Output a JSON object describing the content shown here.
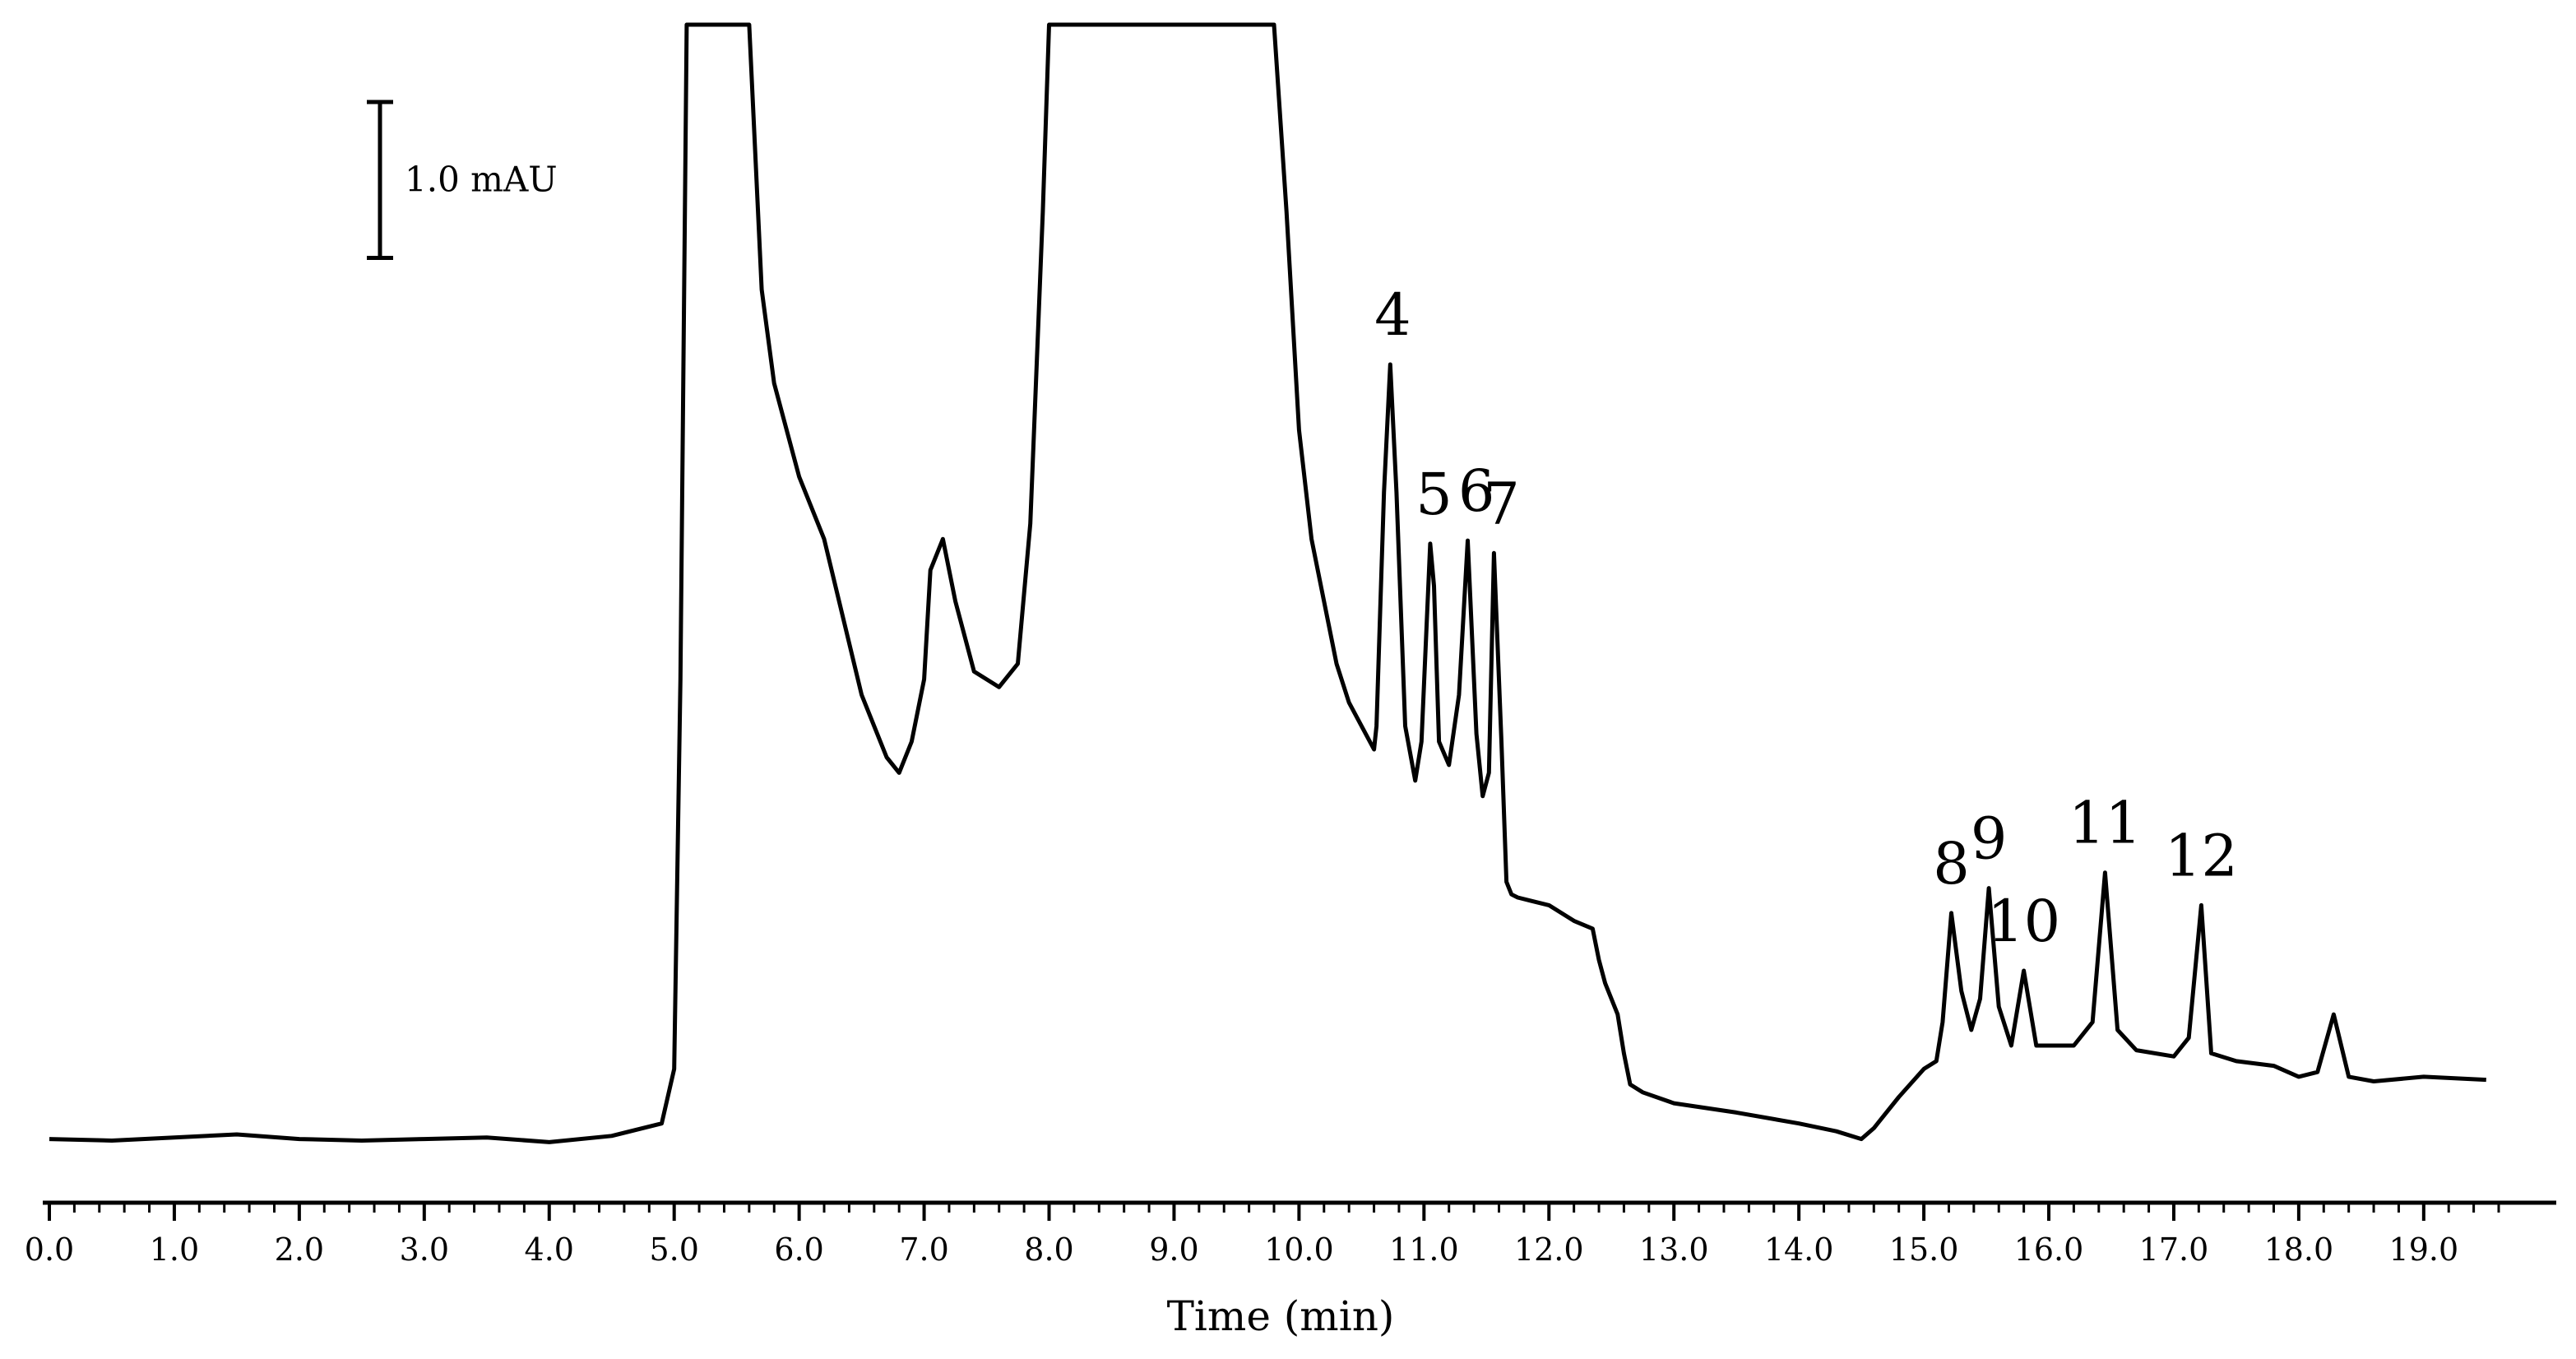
{
  "chart_data": {
    "type": "line",
    "title": "",
    "xlabel": "Time (min)",
    "ylabel": "",
    "x_ticks": [
      "0.0",
      "1.0",
      "2.0",
      "3.0",
      "4.0",
      "5.0",
      "6.0",
      "7.0",
      "8.0",
      "9.0",
      "10.0",
      "11.0",
      "12.0",
      "13.0",
      "14.0",
      "15.0",
      "16.0",
      "17.0",
      "18.0",
      "19.0"
    ],
    "xlim": [
      0,
      19.6
    ],
    "ylim": [
      -0.2,
      7.2
    ],
    "y_unit": "mAU",
    "scale_bar": {
      "label": "1.0 mAU",
      "value": 1.0
    },
    "grid": false,
    "legend": "none",
    "line_color": "#000000",
    "series": [
      {
        "x": [
          0,
          0.5,
          1.0,
          1.5,
          2.0,
          2.5,
          3.0,
          3.5,
          4.0,
          4.5,
          4.9,
          5.0,
          5.05,
          5.1,
          5.2,
          5.6,
          5.7,
          5.8,
          6.0,
          6.2,
          6.5,
          6.7,
          6.8,
          6.9,
          7.0,
          7.05,
          7.15,
          7.25,
          7.4,
          7.6,
          7.75,
          7.85,
          7.95,
          8.0,
          9.8,
          9.9,
          10.0,
          10.1,
          10.2,
          10.3,
          10.4,
          10.6,
          10.62,
          10.68,
          10.73,
          10.78,
          10.85,
          10.93,
          10.98,
          11.05,
          11.08,
          11.12,
          11.2,
          11.28,
          11.35,
          11.42,
          11.47,
          11.52,
          11.56,
          11.62,
          11.66,
          11.7,
          11.75,
          11.85,
          12.0,
          12.2,
          12.35,
          12.4,
          12.45,
          12.55,
          12.6,
          12.65,
          12.75,
          13.0,
          13.5,
          14.0,
          14.3,
          14.5,
          14.6,
          14.8,
          15.0,
          15.1,
          15.15,
          15.22,
          15.3,
          15.38,
          15.45,
          15.52,
          15.6,
          15.7,
          15.8,
          15.9,
          16.0,
          16.2,
          16.35,
          16.45,
          16.55,
          16.7,
          17.0,
          17.12,
          17.22,
          17.3,
          17.5,
          17.8,
          18.0,
          18.15,
          18.28,
          18.4,
          18.6,
          19.0,
          19.5
        ],
        "y": [
          0.05,
          0.04,
          0.06,
          0.08,
          0.05,
          0.04,
          0.05,
          0.06,
          0.03,
          0.07,
          0.15,
          0.5,
          3.0,
          7.2,
          7.2,
          7.2,
          5.5,
          4.9,
          4.3,
          3.9,
          2.9,
          2.5,
          2.4,
          2.6,
          3.0,
          3.7,
          3.9,
          3.5,
          3.05,
          2.95,
          3.1,
          4.0,
          6.0,
          7.2,
          7.2,
          6.0,
          4.6,
          3.9,
          3.5,
          3.1,
          2.85,
          2.55,
          2.7,
          4.2,
          5.02,
          4.2,
          2.7,
          2.35,
          2.6,
          3.87,
          3.6,
          2.6,
          2.45,
          2.9,
          3.89,
          2.65,
          2.25,
          2.4,
          3.81,
          2.6,
          1.7,
          1.62,
          1.6,
          1.58,
          1.55,
          1.45,
          1.4,
          1.2,
          1.05,
          0.85,
          0.6,
          0.4,
          0.35,
          0.28,
          0.22,
          0.15,
          0.1,
          0.05,
          0.12,
          0.32,
          0.5,
          0.55,
          0.8,
          1.5,
          1.0,
          0.75,
          0.95,
          1.66,
          0.9,
          0.65,
          1.13,
          0.65,
          0.65,
          0.65,
          0.8,
          1.76,
          0.75,
          0.62,
          0.58,
          0.7,
          1.55,
          0.6,
          0.55,
          0.52,
          0.45,
          0.48,
          0.85,
          0.45,
          0.42,
          0.45,
          0.43
        ]
      }
    ],
    "peak_labels": [
      {
        "text": "4",
        "x": 10.75,
        "y": 5.02
      },
      {
        "text": "5",
        "x": 11.08,
        "y": 3.87
      },
      {
        "text": "6",
        "x": 11.42,
        "y": 3.89
      },
      {
        "text": "7",
        "x": 11.62,
        "y": 3.81
      },
      {
        "text": "8",
        "x": 15.22,
        "y": 1.5
      },
      {
        "text": "9",
        "x": 15.52,
        "y": 1.66
      },
      {
        "text": "10",
        "x": 15.8,
        "y": 1.13
      },
      {
        "text": "11",
        "x": 16.45,
        "y": 1.76
      },
      {
        "text": "12",
        "x": 17.22,
        "y": 1.55
      }
    ]
  }
}
